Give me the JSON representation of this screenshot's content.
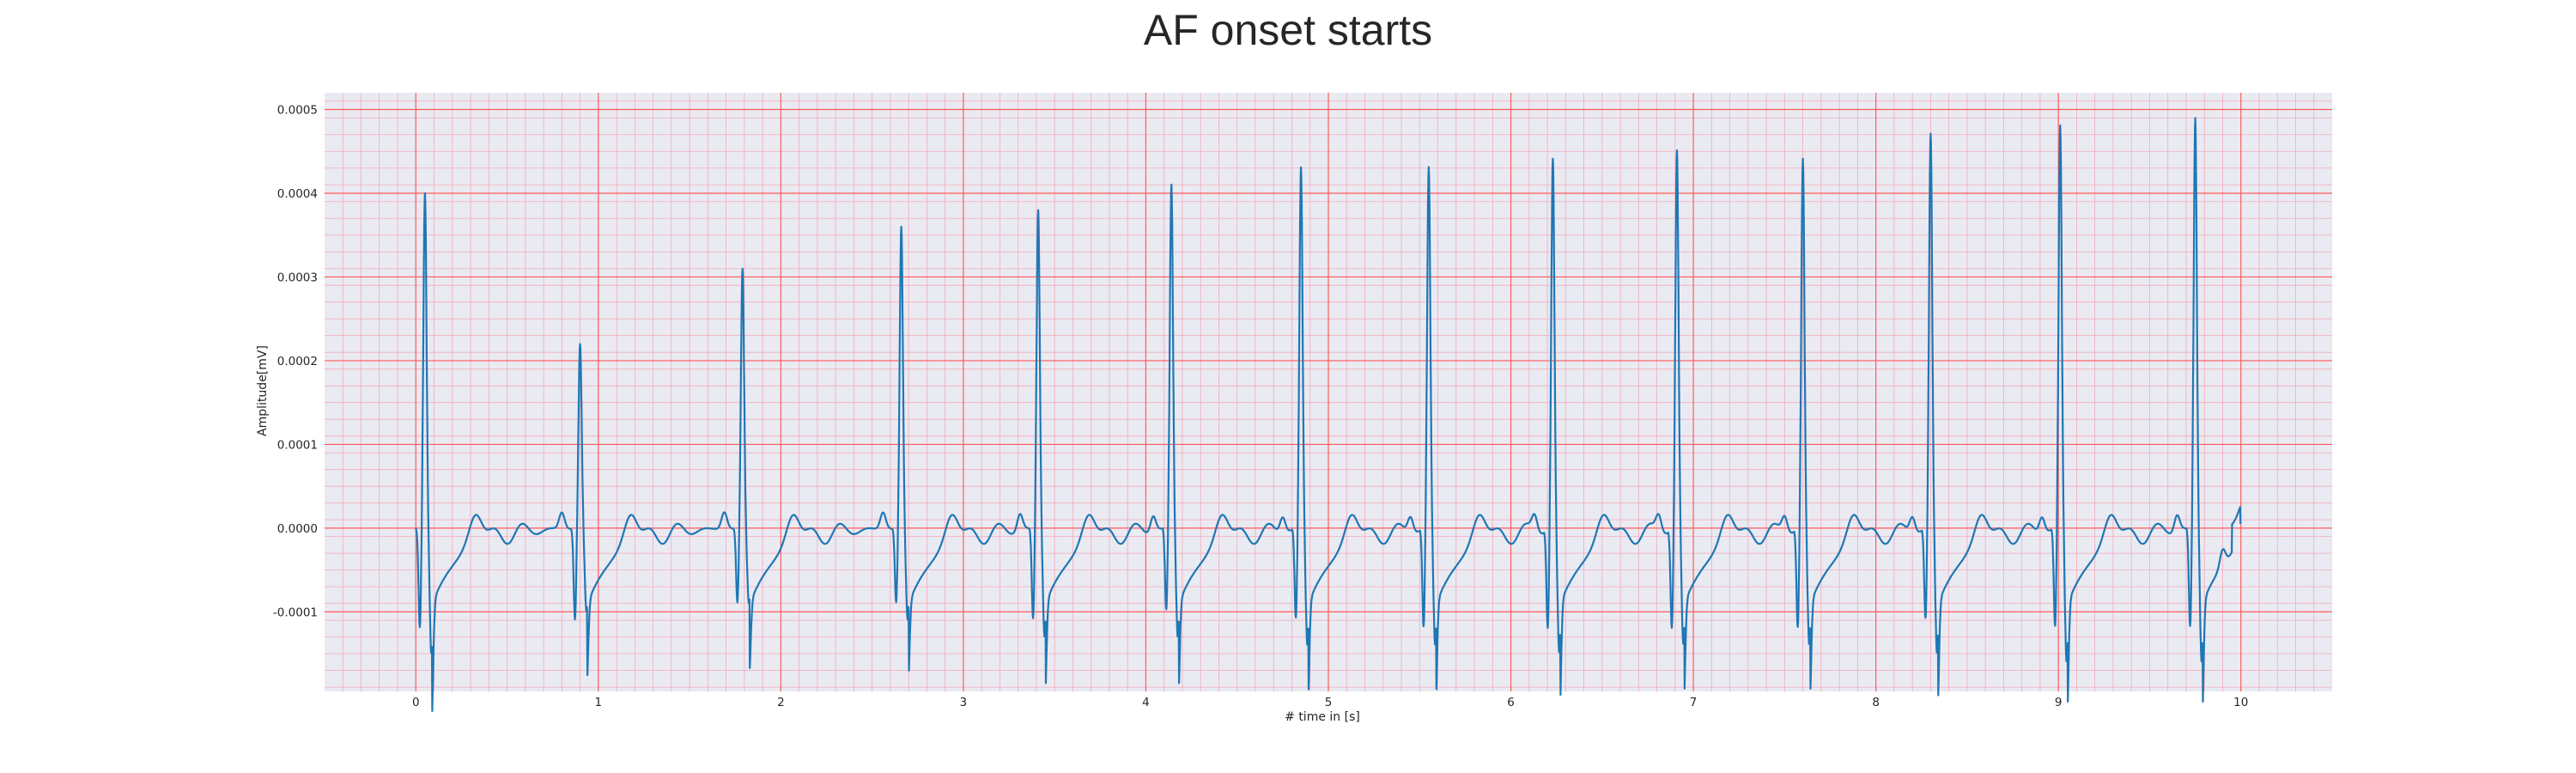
{
  "chart_data": {
    "type": "line",
    "title": "AF onset starts",
    "xlabel": "# time in [s]",
    "ylabel": "Amplitude[mV]",
    "xlim": [
      -0.5,
      10.5
    ],
    "ylim": [
      -0.000195,
      0.00052
    ],
    "x_ticks": [
      "0",
      "1",
      "2",
      "3",
      "4",
      "5",
      "6",
      "7",
      "8",
      "9",
      "10"
    ],
    "y_ticks": [
      "0.0005",
      "0.0004",
      "0.0003",
      "0.0002",
      "0.0001",
      "0.0000",
      "-0.0001"
    ],
    "grid": "on",
    "colors": {
      "plot_background": "#eaeaf2",
      "major_grid": "#ff5a5a",
      "minor_grid": "#f4aab8",
      "line": "#1f77b4"
    },
    "series": [
      {
        "beats": [
          {
            "t": 0.05,
            "r": 0.0004,
            "s": -0.00015,
            "q": -0.00012
          },
          {
            "t": 0.9,
            "r": 0.00022,
            "s": -0.0001,
            "q": -0.00011
          },
          {
            "t": 1.79,
            "r": 0.00031,
            "s": -9e-05,
            "q": -9e-05
          },
          {
            "t": 2.66,
            "r": 0.00036,
            "s": -0.00011,
            "q": -9e-05
          },
          {
            "t": 3.41,
            "r": 0.00038,
            "s": -0.00013,
            "q": -0.00011
          },
          {
            "t": 4.14,
            "r": 0.00041,
            "s": -0.00013,
            "q": -0.0001
          },
          {
            "t": 4.85,
            "r": 0.00043,
            "s": -0.00014,
            "q": -0.00011
          },
          {
            "t": 5.55,
            "r": 0.00043,
            "s": -0.00014,
            "q": -0.00012
          },
          {
            "t": 6.23,
            "r": 0.00044,
            "s": -0.00015,
            "q": -0.00012
          },
          {
            "t": 6.91,
            "r": 0.00045,
            "s": -0.00014,
            "q": -0.00012
          },
          {
            "t": 7.6,
            "r": 0.00044,
            "s": -0.00014,
            "q": -0.00012
          },
          {
            "t": 8.3,
            "r": 0.00047,
            "s": -0.00015,
            "q": -0.00011
          },
          {
            "t": 9.01,
            "r": 0.00048,
            "s": -0.00016,
            "q": -0.00012
          },
          {
            "t": 9.75,
            "r": 0.00049,
            "s": -0.00016,
            "q": -0.00012
          }
        ],
        "end_value": 5e-06
      }
    ]
  }
}
